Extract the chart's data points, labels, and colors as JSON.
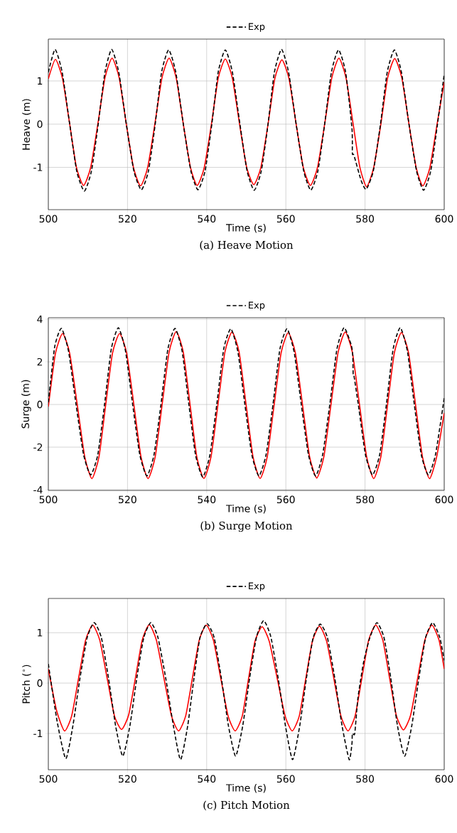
{
  "chart_data": [
    {
      "type": "line",
      "title": "(a) Heave Motion",
      "xlabel": "Time (s)",
      "ylabel": "Heave (m)",
      "xlim": [
        500,
        600
      ],
      "xticks": [
        500,
        520,
        540,
        560,
        580,
        600
      ],
      "ylim": [
        -1.98,
        1.97
      ],
      "yticks": [
        -1,
        0,
        1
      ],
      "grid": true,
      "legend": "top",
      "series": [
        {
          "name": "Exp",
          "color": "#000000",
          "line_style": "dashed",
          "x": [
            500,
            501.7,
            503.5,
            505.4,
            507.2,
            509.1,
            510.9,
            512.6,
            514.3,
            516.0,
            517.8,
            519.7,
            521.6,
            523.5,
            525.3,
            527.0,
            528.6,
            530.4,
            532.2,
            534.1,
            536.0,
            537.8,
            539.6,
            541.3,
            542.9,
            544.7,
            546.5,
            548.4,
            550.2,
            552.0,
            553.8,
            555.5,
            557.1,
            558.9,
            560.7,
            562.6,
            564.5,
            566.3,
            568.1,
            569.8,
            571.5,
            573.3,
            575.1,
            576.7,
            576.8,
            577.2,
            579.0,
            580.3,
            582.1,
            583.9,
            585.6,
            587.4,
            589.2,
            591.1,
            593.0,
            594.8,
            596.6,
            598.3,
            600
          ],
          "values": [
            1.2,
            1.73,
            1.2,
            0.0,
            -1.1,
            -1.55,
            -1.08,
            0.0,
            1.2,
            1.73,
            1.2,
            0.0,
            -1.08,
            -1.52,
            -1.08,
            0.0,
            1.2,
            1.72,
            1.2,
            0.0,
            -1.08,
            -1.52,
            -1.08,
            0.0,
            1.2,
            1.72,
            1.2,
            0.0,
            -1.08,
            -1.53,
            -1.08,
            0.0,
            1.2,
            1.73,
            1.2,
            0.0,
            -1.08,
            -1.53,
            -1.08,
            0.0,
            1.2,
            1.72,
            1.2,
            -0.1,
            -0.68,
            -0.72,
            -1.3,
            -1.51,
            -1.08,
            0.0,
            1.2,
            1.72,
            1.2,
            0.0,
            -1.08,
            -1.53,
            -1.08,
            0.0,
            1.15
          ]
        },
        {
          "color": "#ff0000",
          "line_style": "solid",
          "x": [
            500,
            501.8,
            503.6,
            505.4,
            507.1,
            508.9,
            510.7,
            512.5,
            514.3,
            516.1,
            517.9,
            519.7,
            521.5,
            523.3,
            525.1,
            526.9,
            528.7,
            530.5,
            532.3,
            534.1,
            535.9,
            537.6,
            539.4,
            541.2,
            542.9,
            544.7,
            546.5,
            548.3,
            550.1,
            551.9,
            553.7,
            555.5,
            557.2,
            559.0,
            560.8,
            562.6,
            564.4,
            566.2,
            568.0,
            569.8,
            571.6,
            573.4,
            575.2,
            577.0,
            578.7,
            580.4,
            582.2,
            584.0,
            585.7,
            587.5,
            589.3,
            591.1,
            592.9,
            594.6,
            596.4,
            598.2,
            600
          ],
          "values": [
            1.05,
            1.5,
            1.05,
            0.0,
            -1.0,
            -1.42,
            -1.0,
            0.0,
            1.07,
            1.53,
            1.07,
            0.0,
            -1.0,
            -1.43,
            -1.0,
            0.0,
            1.07,
            1.53,
            1.07,
            0.0,
            -1.0,
            -1.42,
            -1.0,
            0.0,
            1.06,
            1.51,
            1.06,
            0.0,
            -1.0,
            -1.4,
            -1.0,
            0.0,
            1.05,
            1.49,
            1.05,
            0.0,
            -1.0,
            -1.42,
            -1.0,
            0.0,
            1.07,
            1.53,
            1.07,
            0.0,
            -1.0,
            -1.45,
            -1.0,
            0.0,
            1.07,
            1.52,
            1.07,
            0.0,
            -1.0,
            -1.43,
            -1.0,
            0.0,
            0.97
          ]
        }
      ]
    },
    {
      "type": "line",
      "title": "(b) Surge Motion",
      "xlabel": "Time (s)",
      "ylabel": "Surge (m)",
      "xlim": [
        500,
        600
      ],
      "xticks": [
        500,
        520,
        540,
        560,
        580,
        600
      ],
      "ylim": [
        -4.03,
        4.07
      ],
      "yticks": [
        -4,
        -2,
        0,
        2,
        4
      ],
      "grid": true,
      "legend": "top",
      "series": [
        {
          "name": "Exp",
          "color": "#000000",
          "line_style": "dashed",
          "x": [
            500,
            501.6,
            503.3,
            505.1,
            507.0,
            508.9,
            510.7,
            512.5,
            514.2,
            515.9,
            517.7,
            519.5,
            521.3,
            523.1,
            524.9,
            526.7,
            528.45,
            530.2,
            532.0,
            533.8,
            535.5,
            537.2,
            539.0,
            540.8,
            542.55,
            544.3,
            546.1,
            547.9,
            549.65,
            551.4,
            553.2,
            555.0,
            556.75,
            558.5,
            560.3,
            562.1,
            563.9,
            565.7,
            567.5,
            569.3,
            571.1,
            572.9,
            574.7,
            576.5,
            576.9,
            577.0,
            577.2,
            578.3,
            580.1,
            581.9,
            583.7,
            585.4,
            587.1,
            588.9,
            590.7,
            592.45,
            594.2,
            596.0,
            597.8,
            600
          ],
          "values": [
            0.1,
            2.7,
            3.57,
            2.5,
            0,
            -2.35,
            -3.3,
            -2.35,
            0,
            2.6,
            3.6,
            2.5,
            0,
            -2.35,
            -3.35,
            -2.35,
            0,
            2.6,
            3.57,
            2.5,
            0,
            -2.38,
            -3.4,
            -2.38,
            0,
            2.6,
            3.55,
            2.45,
            0,
            -2.35,
            -3.35,
            -2.35,
            0,
            2.6,
            3.55,
            2.45,
            0,
            -2.35,
            -3.35,
            -2.35,
            0,
            2.6,
            3.6,
            2.8,
            2.3,
            1.45,
            1.35,
            0,
            -2.35,
            -3.3,
            -2.35,
            0,
            2.6,
            3.6,
            2.5,
            0,
            -2.35,
            -3.3,
            -2.35,
            0.3
          ]
        },
        {
          "color": "#ff0000",
          "line_style": "solid",
          "x": [
            500,
            501.8,
            503.6,
            505.4,
            507.3,
            509.2,
            511.0,
            512.8,
            514.5,
            516.2,
            518.0,
            519.8,
            521.6,
            523.4,
            525.2,
            527.0,
            528.75,
            530.5,
            532.3,
            534.1,
            535.8,
            537.5,
            539.3,
            541.1,
            542.85,
            544.6,
            546.4,
            548.2,
            549.95,
            551.7,
            553.5,
            555.3,
            557.05,
            558.8,
            560.6,
            562.4,
            564.2,
            566.0,
            567.8,
            569.6,
            571.4,
            573.2,
            575.0,
            576.8,
            578.6,
            580.4,
            582.2,
            584.0,
            585.7,
            587.4,
            589.2,
            591.0,
            592.75,
            594.5,
            596.3,
            598.1,
            600
          ],
          "values": [
            -0.1,
            2.4,
            3.33,
            2.4,
            0,
            -2.45,
            -3.48,
            -2.45,
            0,
            2.4,
            3.33,
            2.4,
            0,
            -2.45,
            -3.48,
            -2.45,
            0,
            2.45,
            3.42,
            2.45,
            0,
            -2.45,
            -3.47,
            -2.45,
            0,
            2.45,
            3.4,
            2.45,
            0,
            -2.45,
            -3.47,
            -2.45,
            0,
            2.42,
            3.37,
            2.42,
            0,
            -2.45,
            -3.45,
            -2.45,
            0,
            2.45,
            3.4,
            2.45,
            0,
            -2.45,
            -3.48,
            -2.45,
            0,
            2.42,
            3.38,
            2.42,
            0,
            -2.45,
            -3.48,
            -2.45,
            -0.4
          ]
        }
      ]
    },
    {
      "type": "line",
      "title": "(c) Pitch Motion",
      "xlabel": "Time (s)",
      "ylabel": "Pitch ($^{∘}$)",
      "xlim": [
        500,
        600
      ],
      "xticks": [
        500,
        520,
        540,
        560,
        580,
        600
      ],
      "ylim": [
        -1.72,
        1.68
      ],
      "yticks": [
        -1,
        0,
        1
      ],
      "grid": true,
      "legend": "top",
      "series": [
        {
          "name": "Exp",
          "color": "#000000",
          "line_style": "dashed",
          "x": [
            500,
            502.2,
            504.4,
            506.2,
            508.0,
            509.8,
            511.6,
            513.4,
            515.2,
            517.0,
            518.8,
            520.6,
            522.35,
            524.1,
            525.9,
            527.7,
            529.65,
            531.6,
            533.4,
            535.2,
            536.8,
            538.3,
            540.1,
            541.9,
            543.7,
            545.5,
            547.3,
            549.1,
            550.85,
            552.6,
            554.4,
            556.2,
            558.05,
            559.9,
            561.7,
            563.5,
            565.2,
            566.9,
            568.7,
            570.5,
            572.35,
            574.2,
            576.0,
            576.7,
            576.8,
            577.4,
            578.2,
            579.6,
            581.2,
            583.0,
            584.8,
            586.5,
            588.2,
            590.0,
            591.8,
            593.6,
            595.3,
            597.1,
            598.9,
            600
          ],
          "values": [
            0.38,
            -0.75,
            -1.5,
            -0.85,
            0.1,
            0.9,
            1.2,
            0.9,
            0.1,
            -0.85,
            -1.45,
            -0.85,
            0.1,
            0.9,
            1.2,
            0.9,
            0.1,
            -0.85,
            -1.52,
            -0.85,
            0.1,
            0.9,
            1.18,
            0.9,
            0.1,
            -0.85,
            -1.45,
            -0.85,
            0.1,
            0.92,
            1.24,
            0.92,
            0.1,
            -0.85,
            -1.52,
            -0.85,
            0.1,
            0.9,
            1.17,
            0.9,
            0.1,
            -0.85,
            -1.52,
            -1.2,
            -1.0,
            -1.0,
            -0.3,
            0.4,
            0.9,
            1.2,
            0.9,
            0.1,
            -0.85,
            -1.45,
            -0.85,
            0.1,
            0.9,
            1.2,
            0.9,
            0.45
          ]
        },
        {
          "color": "#ff0000",
          "line_style": "solid",
          "x": [
            500,
            502.1,
            504.1,
            505.9,
            507.65,
            509.4,
            511.2,
            513.0,
            514.85,
            516.7,
            518.5,
            520.3,
            522.0,
            523.7,
            525.5,
            527.3,
            529.2,
            531.1,
            532.9,
            534.7,
            536.4,
            538.1,
            539.9,
            541.7,
            543.55,
            545.4,
            547.2,
            549.0,
            550.6,
            552.2,
            554.0,
            555.8,
            557.8,
            559.8,
            561.6,
            563.4,
            565.05,
            566.7,
            568.5,
            570.3,
            572.1,
            573.9,
            575.7,
            577.5,
            579.2,
            580.9,
            582.7,
            584.5,
            586.2,
            587.9,
            589.7,
            591.5,
            593.3,
            595.1,
            596.9,
            598.7,
            600
          ],
          "values": [
            0.28,
            -0.55,
            -0.95,
            -0.65,
            0.1,
            0.85,
            1.15,
            0.85,
            0.1,
            -0.65,
            -0.92,
            -0.63,
            0.1,
            0.85,
            1.16,
            0.85,
            0.1,
            -0.65,
            -0.95,
            -0.65,
            0.1,
            0.85,
            1.15,
            0.85,
            0.1,
            -0.65,
            -0.95,
            -0.65,
            0.1,
            0.83,
            1.12,
            0.83,
            0.1,
            -0.65,
            -0.95,
            -0.65,
            0.1,
            0.83,
            1.13,
            0.83,
            0.1,
            -0.65,
            -0.95,
            -0.65,
            0.1,
            0.85,
            1.15,
            0.85,
            0.1,
            -0.64,
            -0.93,
            -0.64,
            0.1,
            0.85,
            1.15,
            0.85,
            0.28
          ]
        }
      ]
    }
  ]
}
